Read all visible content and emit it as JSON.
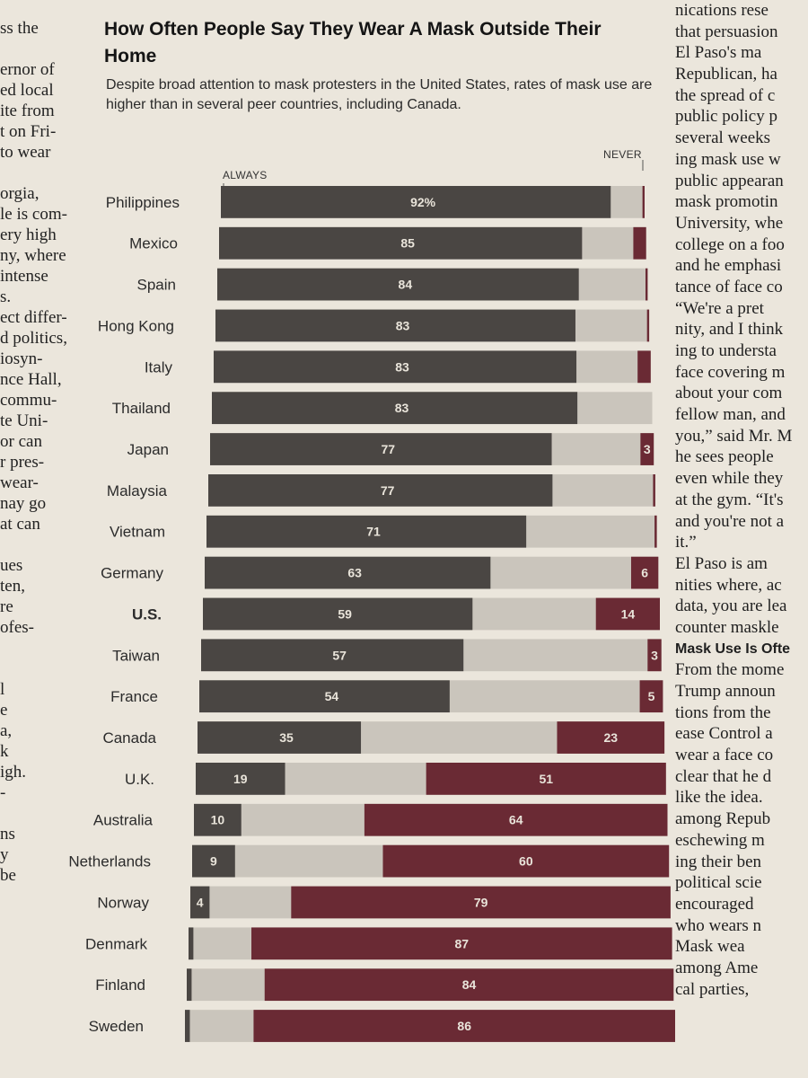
{
  "article": {
    "left_column": [
      "ss the",
      "",
      "ernor of",
      "ed local",
      "ite from",
      "t on Fri-",
      "to wear",
      "",
      "orgia,",
      "le is com-",
      "ery high",
      "ny, where",
      "intense",
      "s.",
      "ect differ-",
      "d politics,",
      "iosyn-",
      "nce Hall,",
      "commu-",
      "te Uni-",
      "or can",
      "r pres-",
      "wear-",
      "nay go",
      "at can",
      "",
      "ues",
      "ten,",
      "re",
      "ofes-",
      "",
      "",
      "l",
      "e",
      "a,",
      "k",
      "igh.",
      "-",
      "",
      "ns",
      "y",
      "be"
    ],
    "right_column": [
      "nications rese",
      "that persuasion",
      "El Paso's ma",
      "Republican, ha",
      "the spread of c",
      "public policy p",
      "several weeks",
      "ing mask use w",
      "public appearan",
      "mask promotin",
      "University, whe",
      "college on a foo",
      "and he emphasi",
      "tance of face co",
      "“We're a pret",
      "nity, and I think",
      "ing to understa",
      "face covering m",
      "about your com",
      "fellow man, and",
      "you,” said Mr. M",
      "he sees people",
      "even while they",
      "at the gym. “It's",
      "and you're not a",
      "it.”",
      "El Paso is am",
      "nities where, ac",
      "data, you are lea",
      "counter maskle",
      "Mask Use Is Ofte",
      "From the mome",
      "Trump announ",
      "tions from the",
      "ease Control a",
      "wear a face co",
      "clear that he d",
      "like the idea.",
      "among Repub",
      "eschewing m",
      "ing their ben",
      "political scie",
      "encouraged",
      "who wears n",
      "Mask wea",
      "among Ame",
      "cal parties,"
    ],
    "right_subhead_index": 30
  },
  "chart": {
    "title": "How Often People Say They Wear A Mask Outside Their Home",
    "subtitle": "Despite broad attention to mask protesters in the United States, rates of mask use are higher than in several peer countries, including Canada.",
    "label_always": "ALWAYS",
    "label_never": "NEVER"
  },
  "colors": {
    "always": "#4a4643",
    "middle": "#cac5bc",
    "never": "#6a2a34",
    "paper": "#ebe6dc"
  },
  "chart_data": {
    "type": "bar",
    "stacked": true,
    "orientation": "horizontal",
    "categories": [
      "Philippines",
      "Mexico",
      "Spain",
      "Hong Kong",
      "Italy",
      "Thailand",
      "Japan",
      "Malaysia",
      "Vietnam",
      "Germany",
      "U.S.",
      "Taiwan",
      "France",
      "Canada",
      "U.K.",
      "Australia",
      "Netherlands",
      "Norway",
      "Denmark",
      "Finland",
      "Sweden"
    ],
    "series": [
      {
        "name": "ALWAYS",
        "values": [
          92,
          85,
          84,
          83,
          83,
          83,
          77,
          77,
          71,
          63,
          59,
          57,
          54,
          35,
          19,
          10,
          9,
          4,
          1,
          1,
          1
        ]
      },
      {
        "name": "NEVER",
        "values": [
          0.5,
          3,
          0.5,
          0.5,
          3,
          0,
          3,
          0.5,
          0.5,
          6,
          14,
          3,
          5,
          23,
          51,
          64,
          60,
          79,
          87,
          84,
          86
        ]
      }
    ],
    "value_labels": {
      "always": [
        "92%",
        "85",
        "84",
        "83",
        "83",
        "83",
        "77",
        "77",
        "71",
        "63",
        "59",
        "57",
        "54",
        "35",
        "19",
        "10",
        "9",
        "4",
        "",
        "",
        ""
      ],
      "never": [
        "",
        "",
        "",
        "",
        "",
        "",
        "3",
        "",
        "",
        "6",
        "14",
        "3",
        "5",
        "23",
        "51",
        "64",
        "60",
        "79",
        "87",
        "84",
        "86"
      ]
    },
    "emphasized_category": "U.S.",
    "xlim": [
      0,
      100
    ]
  }
}
